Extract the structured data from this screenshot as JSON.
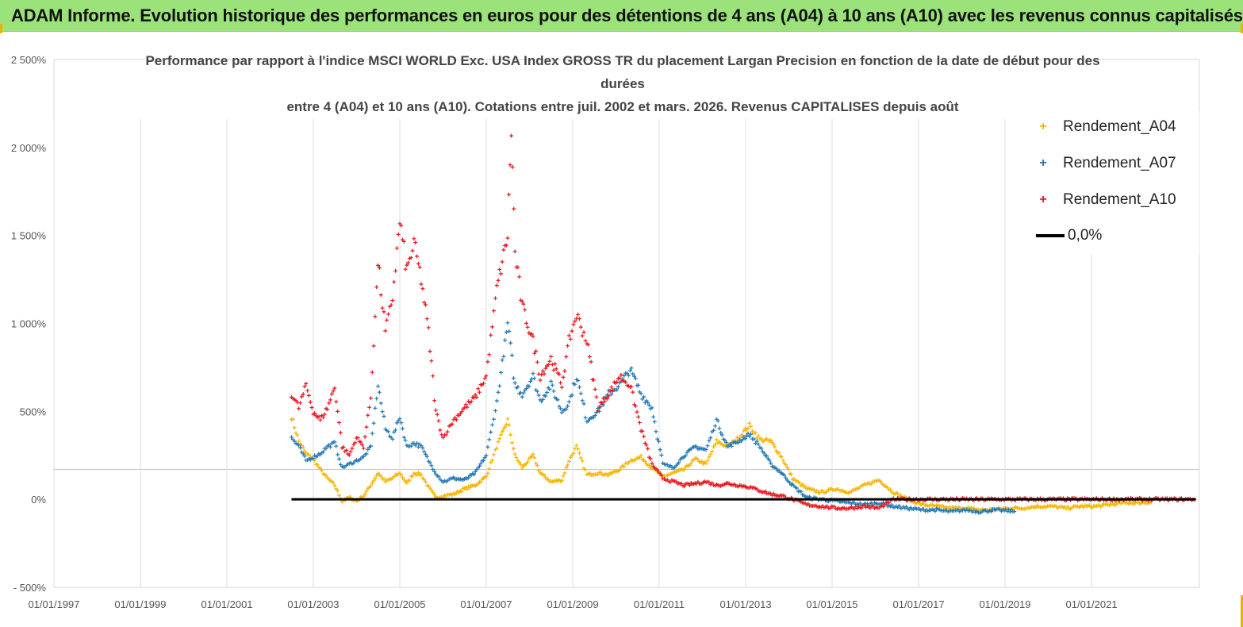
{
  "header": {
    "title": "ADAM Informe. Evolution historique des performances en euros pour des détentions de 4 ans (A04) à 10 ans (A10) avec les revenus connus capitalisés"
  },
  "chart_data": {
    "type": "scatter",
    "title_lines": [
      "Performance par rapport à l'indice MSCI WORLD Exc. USA Index GROSS TR  du placement Largan Precision  en fonction de la date de début pour des",
      "durées",
      "entre 4 (A04) et 10 ans (A10). Cotations entre juil. 2002 et mars. 2026. Revenus CAPITALISES depuis août"
    ],
    "xlabel": "",
    "ylabel": "",
    "x_range": [
      "01/01/1997",
      "01/07/2023"
    ],
    "x_ticks": [
      "01/01/1997",
      "01/01/1999",
      "01/01/2001",
      "01/01/2003",
      "01/01/2005",
      "01/01/2007",
      "01/01/2009",
      "01/01/2011",
      "01/01/2013",
      "01/01/2015",
      "01/01/2017",
      "01/01/2019",
      "01/01/2021"
    ],
    "ylim": [
      -500,
      2500
    ],
    "y_ticks": [
      -500,
      0,
      500,
      1000,
      1500,
      2000,
      2500
    ],
    "y_tick_labels": [
      "- 500%",
      "0%",
      "500%",
      "1 000%",
      "1 500%",
      "2 000%",
      "2 500%"
    ],
    "grid": "vertical",
    "legend_position": "right",
    "colors": {
      "A04": "#f5b400",
      "A07": "#1f77b4",
      "A10": "#e8141c",
      "zero": "#000000"
    },
    "series": [
      {
        "name": "Rendement_A04",
        "color": "#f5b400",
        "points": [
          [
            "2002-07-01",
            470
          ],
          [
            "2002-09-01",
            330
          ],
          [
            "2002-11-01",
            260
          ],
          [
            "2003-01-01",
            230
          ],
          [
            "2003-03-01",
            170
          ],
          [
            "2003-05-01",
            120
          ],
          [
            "2003-07-01",
            80
          ],
          [
            "2003-09-01",
            -10
          ],
          [
            "2003-11-01",
            10
          ],
          [
            "2004-01-01",
            -10
          ],
          [
            "2004-03-01",
            20
          ],
          [
            "2004-05-01",
            80
          ],
          [
            "2004-07-01",
            150
          ],
          [
            "2004-09-01",
            100
          ],
          [
            "2004-11-01",
            120
          ],
          [
            "2005-01-01",
            150
          ],
          [
            "2005-03-01",
            90
          ],
          [
            "2005-05-01",
            150
          ],
          [
            "2005-07-01",
            140
          ],
          [
            "2005-09-01",
            70
          ],
          [
            "2005-11-01",
            10
          ],
          [
            "2006-01-01",
            20
          ],
          [
            "2006-04-01",
            30
          ],
          [
            "2006-07-01",
            60
          ],
          [
            "2006-10-01",
            80
          ],
          [
            "2007-01-01",
            130
          ],
          [
            "2007-04-01",
            300
          ],
          [
            "2007-07-01",
            450
          ],
          [
            "2007-09-01",
            250
          ],
          [
            "2007-11-01",
            180
          ],
          [
            "2008-02-01",
            250
          ],
          [
            "2008-04-01",
            150
          ],
          [
            "2008-07-01",
            100
          ],
          [
            "2008-10-01",
            110
          ],
          [
            "2008-12-01",
            220
          ],
          [
            "2009-02-01",
            300
          ],
          [
            "2009-05-01",
            140
          ],
          [
            "2009-08-01",
            150
          ],
          [
            "2009-11-01",
            140
          ],
          [
            "2010-02-01",
            170
          ],
          [
            "2010-05-01",
            220
          ],
          [
            "2010-08-01",
            240
          ],
          [
            "2010-11-01",
            180
          ],
          [
            "2011-02-01",
            130
          ],
          [
            "2011-05-01",
            150
          ],
          [
            "2011-08-01",
            170
          ],
          [
            "2011-11-01",
            230
          ],
          [
            "2012-02-01",
            200
          ],
          [
            "2012-05-01",
            330
          ],
          [
            "2012-08-01",
            300
          ],
          [
            "2012-11-01",
            350
          ],
          [
            "2013-02-01",
            420
          ],
          [
            "2013-05-01",
            340
          ],
          [
            "2013-08-01",
            330
          ],
          [
            "2013-11-01",
            240
          ],
          [
            "2014-02-01",
            120
          ],
          [
            "2014-06-01",
            60
          ],
          [
            "2014-10-01",
            40
          ],
          [
            "2015-02-01",
            60
          ],
          [
            "2015-06-01",
            40
          ],
          [
            "2015-10-01",
            80
          ],
          [
            "2016-02-01",
            110
          ],
          [
            "2016-06-01",
            40
          ],
          [
            "2016-10-01",
            0
          ],
          [
            "2017-02-01",
            -30
          ],
          [
            "2017-06-01",
            -40
          ],
          [
            "2017-10-01",
            -50
          ],
          [
            "2018-02-01",
            -50
          ],
          [
            "2018-06-01",
            -60
          ],
          [
            "2018-10-01",
            -60
          ],
          [
            "2019-02-01",
            -50
          ],
          [
            "2019-06-01",
            -50
          ],
          [
            "2019-10-01",
            -40
          ],
          [
            "2020-02-01",
            -40
          ],
          [
            "2020-06-01",
            -50
          ],
          [
            "2020-10-01",
            -40
          ],
          [
            "2021-02-01",
            -40
          ],
          [
            "2021-06-01",
            -30
          ],
          [
            "2021-10-01",
            -20
          ],
          [
            "2022-02-01",
            -20
          ],
          [
            "2022-06-01",
            -15
          ]
        ]
      },
      {
        "name": "Rendement_A07",
        "color": "#1f77b4",
        "points": [
          [
            "2002-07-01",
            350
          ],
          [
            "2002-09-01",
            300
          ],
          [
            "2002-11-01",
            220
          ],
          [
            "2003-01-01",
            240
          ],
          [
            "2003-03-01",
            260
          ],
          [
            "2003-05-01",
            300
          ],
          [
            "2003-07-01",
            320
          ],
          [
            "2003-09-01",
            180
          ],
          [
            "2003-11-01",
            200
          ],
          [
            "2004-01-01",
            220
          ],
          [
            "2004-03-01",
            240
          ],
          [
            "2004-05-01",
            300
          ],
          [
            "2004-07-01",
            650
          ],
          [
            "2004-09-01",
            400
          ],
          [
            "2004-11-01",
            350
          ],
          [
            "2005-01-01",
            470
          ],
          [
            "2005-03-01",
            300
          ],
          [
            "2005-05-01",
            320
          ],
          [
            "2005-07-01",
            300
          ],
          [
            "2005-09-01",
            220
          ],
          [
            "2005-11-01",
            150
          ],
          [
            "2006-01-01",
            100
          ],
          [
            "2006-04-01",
            120
          ],
          [
            "2006-07-01",
            110
          ],
          [
            "2006-10-01",
            150
          ],
          [
            "2007-01-01",
            250
          ],
          [
            "2007-04-01",
            550
          ],
          [
            "2007-07-01",
            1000
          ],
          [
            "2007-09-01",
            650
          ],
          [
            "2007-11-01",
            600
          ],
          [
            "2008-02-01",
            700
          ],
          [
            "2008-04-01",
            560
          ],
          [
            "2008-07-01",
            650
          ],
          [
            "2008-10-01",
            500
          ],
          [
            "2008-12-01",
            550
          ],
          [
            "2009-02-01",
            700
          ],
          [
            "2009-05-01",
            450
          ],
          [
            "2009-08-01",
            500
          ],
          [
            "2009-11-01",
            600
          ],
          [
            "2010-02-01",
            650
          ],
          [
            "2010-05-01",
            740
          ],
          [
            "2010-08-01",
            600
          ],
          [
            "2010-11-01",
            520
          ],
          [
            "2011-02-01",
            200
          ],
          [
            "2011-05-01",
            180
          ],
          [
            "2011-08-01",
            250
          ],
          [
            "2011-11-01",
            300
          ],
          [
            "2012-02-01",
            280
          ],
          [
            "2012-05-01",
            450
          ],
          [
            "2012-08-01",
            300
          ],
          [
            "2012-11-01",
            330
          ],
          [
            "2013-02-01",
            370
          ],
          [
            "2013-05-01",
            300
          ],
          [
            "2013-08-01",
            200
          ],
          [
            "2013-11-01",
            150
          ],
          [
            "2014-02-01",
            80
          ],
          [
            "2014-06-01",
            10
          ],
          [
            "2014-10-01",
            0
          ],
          [
            "2015-02-01",
            -10
          ],
          [
            "2015-06-01",
            -20
          ],
          [
            "2015-10-01",
            -30
          ],
          [
            "2016-02-01",
            -20
          ],
          [
            "2016-06-01",
            -40
          ],
          [
            "2016-10-01",
            -50
          ],
          [
            "2017-02-01",
            -60
          ],
          [
            "2017-06-01",
            -60
          ],
          [
            "2017-10-01",
            -70
          ],
          [
            "2018-02-01",
            -60
          ],
          [
            "2018-06-01",
            -70
          ],
          [
            "2018-10-01",
            -60
          ],
          [
            "2019-02-01",
            -65
          ],
          [
            "2019-04-01",
            -70
          ]
        ]
      },
      {
        "name": "Rendement_A10",
        "color": "#e8141c",
        "points": [
          [
            "2002-07-01",
            600
          ],
          [
            "2002-09-01",
            520
          ],
          [
            "2002-11-01",
            650
          ],
          [
            "2003-01-01",
            500
          ],
          [
            "2003-03-01",
            450
          ],
          [
            "2003-05-01",
            520
          ],
          [
            "2003-07-01",
            640
          ],
          [
            "2003-09-01",
            300
          ],
          [
            "2003-11-01",
            250
          ],
          [
            "2004-01-01",
            350
          ],
          [
            "2004-03-01",
            300
          ],
          [
            "2004-05-01",
            580
          ],
          [
            "2004-07-01",
            1350
          ],
          [
            "2004-09-01",
            950
          ],
          [
            "2004-11-01",
            1150
          ],
          [
            "2005-01-01",
            1580
          ],
          [
            "2005-03-01",
            1300
          ],
          [
            "2005-05-01",
            1450
          ],
          [
            "2005-07-01",
            1250
          ],
          [
            "2005-09-01",
            950
          ],
          [
            "2005-11-01",
            500
          ],
          [
            "2006-01-01",
            350
          ],
          [
            "2006-04-01",
            450
          ],
          [
            "2006-07-01",
            520
          ],
          [
            "2006-10-01",
            580
          ],
          [
            "2007-01-01",
            700
          ],
          [
            "2007-04-01",
            1200
          ],
          [
            "2007-07-01",
            1500
          ],
          [
            "2007-08-01",
            2100
          ],
          [
            "2007-09-01",
            1400
          ],
          [
            "2007-11-01",
            1100
          ],
          [
            "2008-02-01",
            900
          ],
          [
            "2008-04-01",
            700
          ],
          [
            "2008-07-01",
            800
          ],
          [
            "2008-10-01",
            650
          ],
          [
            "2008-12-01",
            900
          ],
          [
            "2009-02-01",
            1050
          ],
          [
            "2009-05-01",
            900
          ],
          [
            "2009-08-01",
            520
          ],
          [
            "2009-11-01",
            600
          ],
          [
            "2010-02-01",
            700
          ],
          [
            "2010-05-01",
            650
          ],
          [
            "2010-08-01",
            400
          ],
          [
            "2010-11-01",
            200
          ],
          [
            "2011-02-01",
            120
          ],
          [
            "2011-05-01",
            100
          ],
          [
            "2011-08-01",
            80
          ],
          [
            "2011-11-01",
            90
          ],
          [
            "2012-02-01",
            100
          ],
          [
            "2012-05-01",
            80
          ],
          [
            "2012-08-01",
            90
          ],
          [
            "2012-11-01",
            80
          ],
          [
            "2013-02-01",
            70
          ],
          [
            "2013-05-01",
            50
          ],
          [
            "2013-08-01",
            30
          ],
          [
            "2013-11-01",
            20
          ],
          [
            "2014-02-01",
            0
          ],
          [
            "2014-06-01",
            -30
          ],
          [
            "2014-10-01",
            -40
          ],
          [
            "2015-02-01",
            -50
          ],
          [
            "2015-06-01",
            -50
          ],
          [
            "2015-10-01",
            -40
          ],
          [
            "2016-02-01",
            -50
          ],
          [
            "2016-06-01",
            0
          ],
          [
            "2016-10-01",
            0
          ],
          [
            "2017-06-01",
            0
          ],
          [
            "2018-06-01",
            0
          ],
          [
            "2019-06-01",
            0
          ],
          [
            "2020-06-01",
            0
          ],
          [
            "2021-06-01",
            0
          ],
          [
            "2022-06-01",
            0
          ],
          [
            "2023-06-01",
            0
          ]
        ]
      },
      {
        "name": "0,0%",
        "color": "#000000",
        "type": "line",
        "points": [
          [
            "2002-07-01",
            0
          ],
          [
            "2023-06-01",
            0
          ]
        ]
      }
    ]
  },
  "legend": {
    "items": [
      {
        "label": "Rendement_A04",
        "marker": "+"
      },
      {
        "label": "Rendement_A07",
        "marker": "+"
      },
      {
        "label": "Rendement_A10",
        "marker": "+"
      },
      {
        "label": "0,0%",
        "marker": "line"
      }
    ]
  }
}
